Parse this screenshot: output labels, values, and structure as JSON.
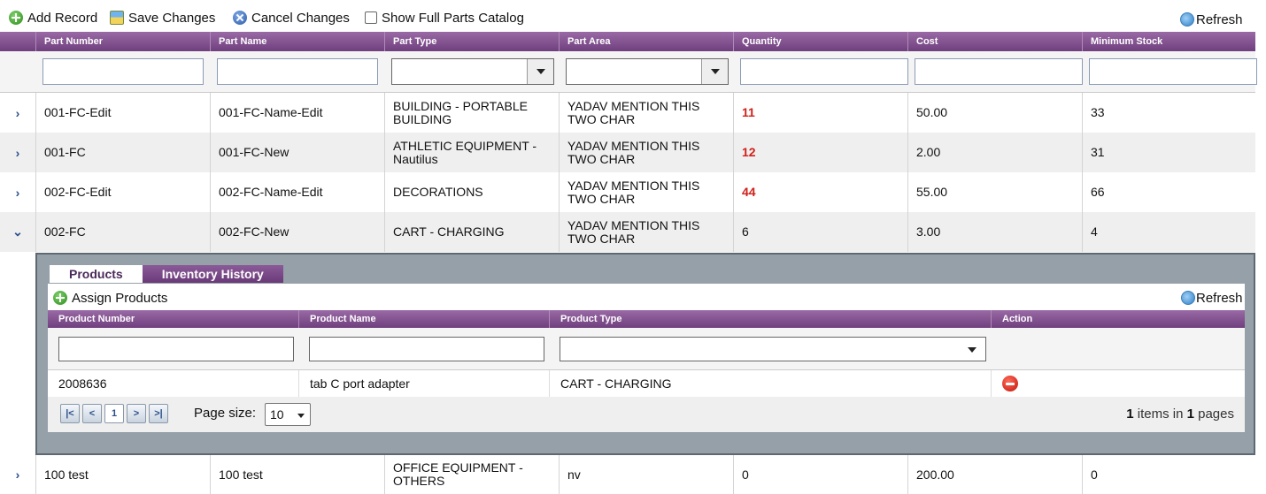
{
  "toolbar": {
    "add_label": "Add Record",
    "save_label": "Save Changes",
    "cancel_label": "Cancel Changes",
    "show_catalog_label": "Show Full Parts Catalog",
    "refresh_label": "Refresh"
  },
  "columns": [
    "Part Number",
    "Part Name",
    "Part Type",
    "Part Area",
    "Quantity",
    "Cost",
    "Minimum Stock"
  ],
  "rows": [
    {
      "part_number": "001-FC-Edit",
      "part_name": "001-FC-Name-Edit",
      "part_type": "BUILDING - PORTABLE BUILDING",
      "part_area": "YADAV MENTION THIS TWO CHAR",
      "quantity": "11",
      "cost": "50.00",
      "min_stock": "33",
      "qty_alert": true,
      "expander": "›"
    },
    {
      "part_number": "001-FC",
      "part_name": "001-FC-New",
      "part_type": "ATHLETIC EQUIPMENT - Nautilus",
      "part_area": "YADAV MENTION THIS TWO CHAR",
      "quantity": "12",
      "cost": "2.00",
      "min_stock": "31",
      "qty_alert": true,
      "expander": "›"
    },
    {
      "part_number": "002-FC-Edit",
      "part_name": "002-FC-Name-Edit",
      "part_type": "DECORATIONS",
      "part_area": "YADAV MENTION THIS TWO CHAR",
      "quantity": "44",
      "cost": "55.00",
      "min_stock": "66",
      "qty_alert": true,
      "expander": "›"
    },
    {
      "part_number": "002-FC",
      "part_name": "002-FC-New",
      "part_type": "CART - CHARGING",
      "part_area": "YADAV MENTION THIS TWO CHAR",
      "quantity": "6",
      "cost": "3.00",
      "min_stock": "4",
      "qty_alert": false,
      "expander": "⌄"
    },
    {
      "part_number": "100 test",
      "part_name": "100 test",
      "part_type": "OFFICE EQUIPMENT - OTHERS",
      "part_area": "nv",
      "quantity": "0",
      "cost": "200.00",
      "min_stock": "0",
      "qty_alert": false,
      "expander": "›"
    }
  ],
  "detail": {
    "tabs": [
      "Products",
      "Inventory History"
    ],
    "assign_label": "Assign Products",
    "refresh_label": "Refresh",
    "columns": [
      "Product Number",
      "Product Name",
      "Product Type",
      "Action"
    ],
    "rows": [
      {
        "product_number": "2008636",
        "product_name": "tab C port adapter",
        "product_type": "CART - CHARGING"
      }
    ],
    "pager": {
      "current_page": "1",
      "page_size_label": "Page size:",
      "page_size": "10",
      "items_count": "1",
      "items_text": "items in",
      "pages_count": "1",
      "pages_text": "pages"
    }
  }
}
